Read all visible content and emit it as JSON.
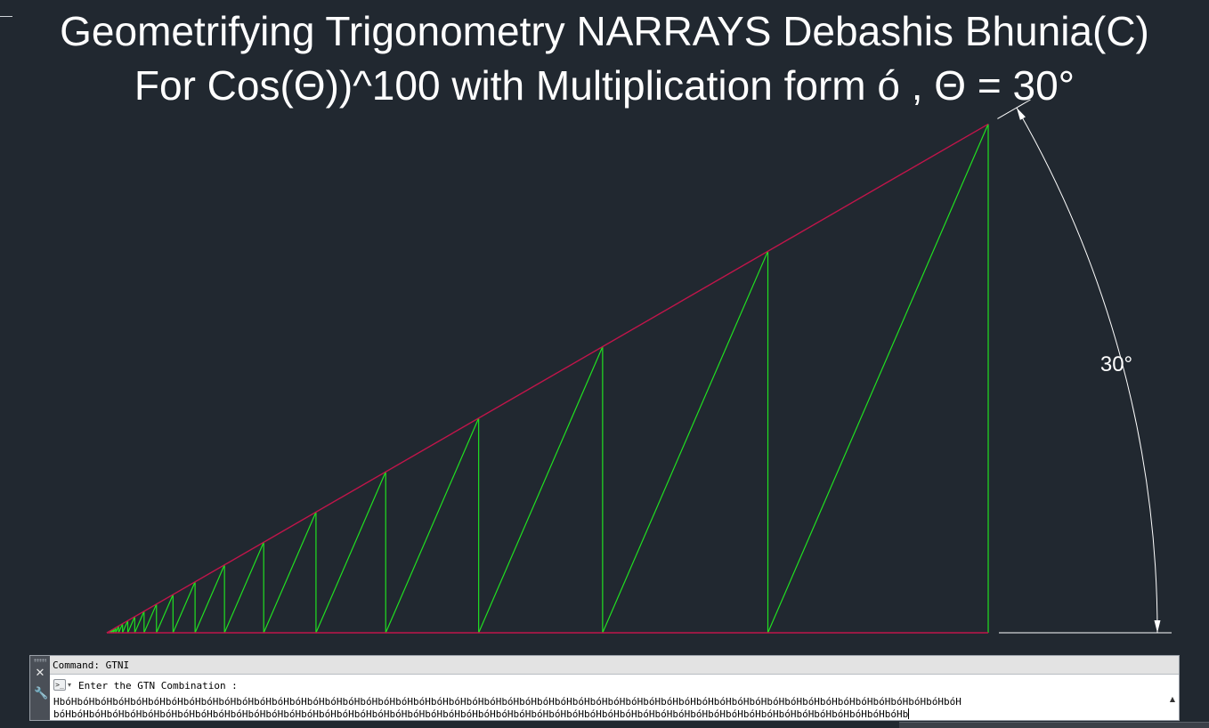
{
  "title": {
    "line1": "Geometrifying Trigonometry NARRAYS Debashis Bhunia(C)",
    "line2": "For Cos(Θ))^100 with Multiplication form ó , Θ = 30°"
  },
  "diagram": {
    "angle_deg": 30,
    "angle_label": "30°",
    "power": 100,
    "colors": {
      "background": "#212830",
      "hypotenuse": "#c0154a",
      "base": "#c0154a",
      "zigzag": "#21e021",
      "dimension": "#ffffff"
    }
  },
  "command_window": {
    "history_line": "Command: GTNI",
    "prompt": "Enter the GTN Combination :",
    "input_line1": "HbóHbóHbóHbóHbóHbóHbóHbóHbóHbóHbóHbóHbóHbóHbóHbóHbóHbóHbóHbóHbóHbóHbóHbóHbóHbóHbóHbóHbóHbóHbóHbóHbóHbóHbóHbóHbóHbóHbóHbóHbóHbóHbóHbóHbóHbóHbóHbóHbóHbóHbóH",
    "input_line2": "bóHbóHbóHbóHbóHbóHbóHbóHbóHbóHbóHbóHbóHbóHbóHbóHbóHbóHbóHbóHbóHbóHbóHbóHbóHbóHbóHbóHbóHbóHbóHbóHbóHbóHbóHbóHbóHbóHbóHbóHbóHbóHbóHbóHbóHbóHbóHbóHb"
  },
  "icons": {
    "close": "close-icon",
    "wrench": "wrench-icon",
    "prompt": "command-prompt-icon",
    "grip": "grip-icon",
    "scroll": "scroll-up-icon"
  }
}
